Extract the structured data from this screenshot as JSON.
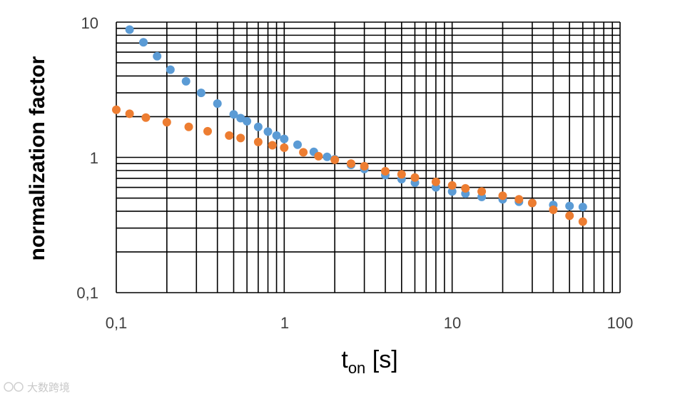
{
  "chart_data": {
    "type": "scatter",
    "x_scale": "log",
    "y_scale": "log",
    "xlim": [
      0.1,
      100
    ],
    "ylim": [
      0.1,
      10
    ],
    "grid": true,
    "x_ticks": [
      "0,1",
      "1",
      "10",
      "100"
    ],
    "y_ticks": [
      "10",
      "1",
      "0,1"
    ],
    "ylabel": "normalization factor",
    "xlabel": {
      "main": "t",
      "sub": "on",
      "unit": " [s]"
    },
    "series": [
      {
        "color": "#5B9BD5",
        "points": [
          [
            0.12,
            8.8
          ],
          [
            0.145,
            7.1
          ],
          [
            0.175,
            5.6
          ],
          [
            0.21,
            4.45
          ],
          [
            0.26,
            3.65
          ],
          [
            0.32,
            3.0
          ],
          [
            0.4,
            2.5
          ],
          [
            0.5,
            2.08
          ],
          [
            0.55,
            1.95
          ],
          [
            0.6,
            1.85
          ],
          [
            0.7,
            1.68
          ],
          [
            0.8,
            1.55
          ],
          [
            0.9,
            1.45
          ],
          [
            1.0,
            1.37
          ],
          [
            1.2,
            1.24
          ],
          [
            1.5,
            1.1
          ],
          [
            1.8,
            1.01
          ],
          [
            2.0,
            0.97
          ],
          [
            2.5,
            0.88
          ],
          [
            3,
            0.82
          ],
          [
            4,
            0.74
          ],
          [
            5,
            0.69
          ],
          [
            6,
            0.65
          ],
          [
            8,
            0.6
          ],
          [
            10,
            0.56
          ],
          [
            12,
            0.54
          ],
          [
            15,
            0.51
          ],
          [
            20,
            0.49
          ],
          [
            25,
            0.47
          ],
          [
            30,
            0.46
          ],
          [
            40,
            0.445
          ],
          [
            50,
            0.437
          ],
          [
            60,
            0.43
          ]
        ]
      },
      {
        "color": "#ED7D31",
        "points": [
          [
            0.1,
            2.25
          ],
          [
            0.12,
            2.1
          ],
          [
            0.15,
            1.97
          ],
          [
            0.2,
            1.82
          ],
          [
            0.27,
            1.68
          ],
          [
            0.35,
            1.56
          ],
          [
            0.47,
            1.45
          ],
          [
            0.55,
            1.39
          ],
          [
            0.7,
            1.3
          ],
          [
            0.85,
            1.23
          ],
          [
            1.0,
            1.18
          ],
          [
            1.3,
            1.09
          ],
          [
            1.6,
            1.02
          ],
          [
            2,
            0.96
          ],
          [
            2.5,
            0.9
          ],
          [
            3,
            0.86
          ],
          [
            4,
            0.79
          ],
          [
            5,
            0.75
          ],
          [
            6,
            0.71
          ],
          [
            8,
            0.66
          ],
          [
            10,
            0.62
          ],
          [
            12,
            0.59
          ],
          [
            15,
            0.56
          ],
          [
            20,
            0.52
          ],
          [
            25,
            0.49
          ],
          [
            30,
            0.46
          ],
          [
            40,
            0.41
          ],
          [
            50,
            0.37
          ],
          [
            60,
            0.335
          ]
        ]
      }
    ]
  },
  "watermark": {
    "text": "大数跨境",
    "icon": "logo-icon"
  }
}
